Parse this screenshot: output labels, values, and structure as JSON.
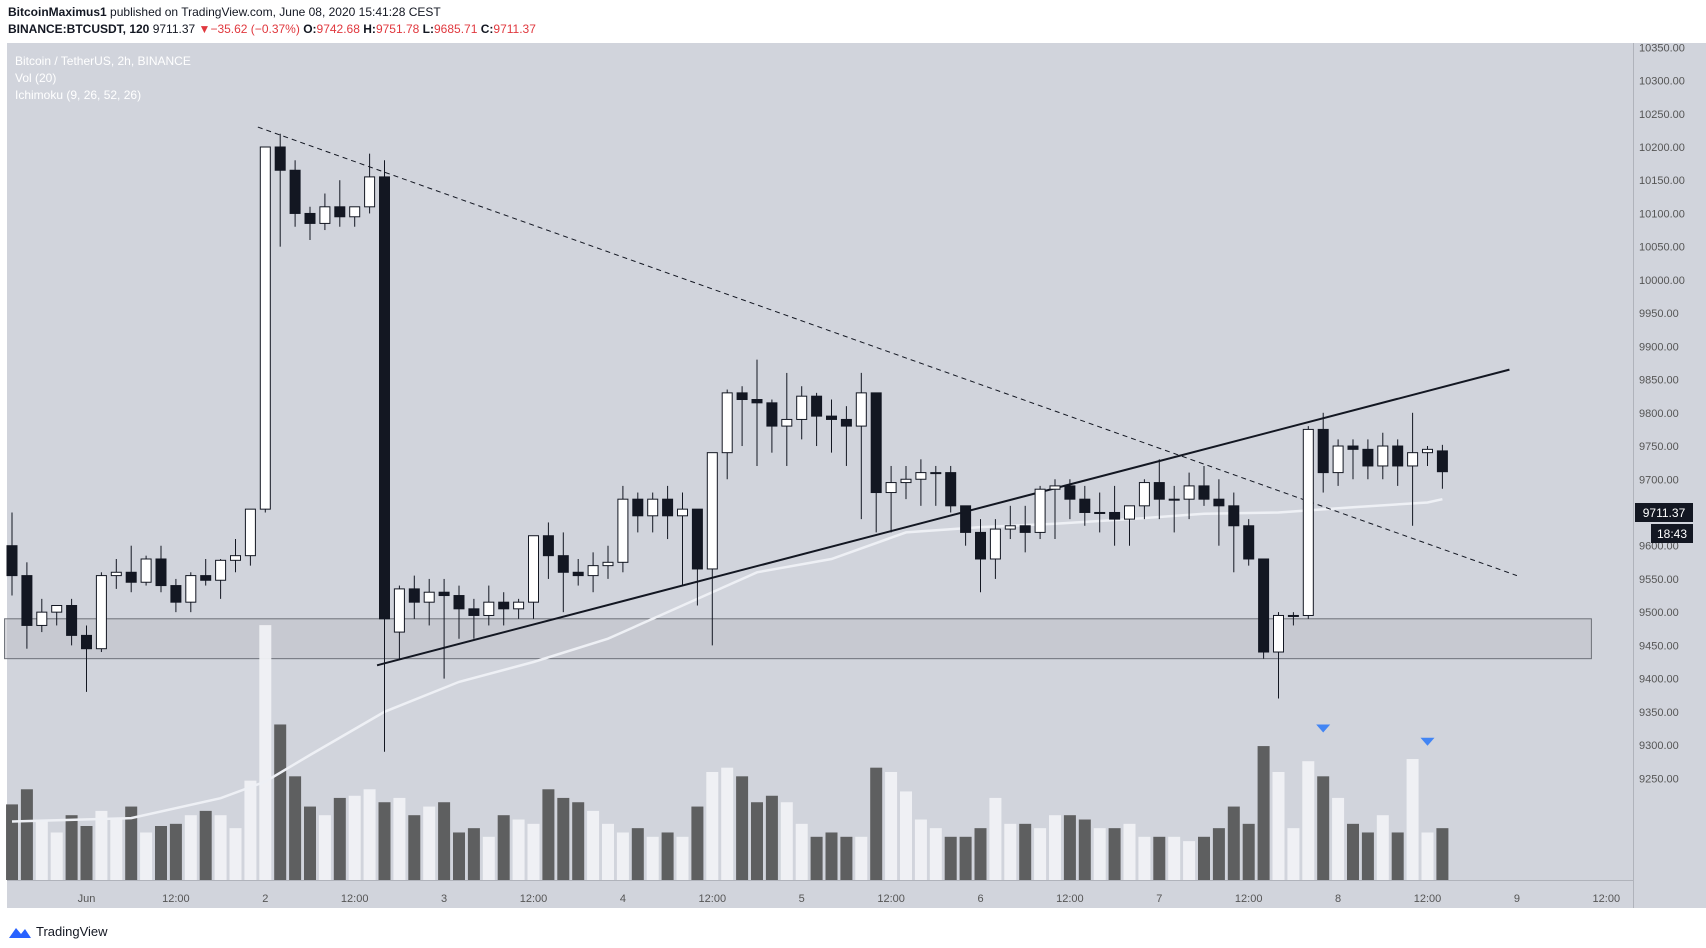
{
  "header": {
    "author": "BitcoinMaximus1",
    "published_text": "published on TradingView.com, June 08, 2020 15:41:28 CEST",
    "symbol": "BINANCE:BTCUSDT, 120",
    "last": "9711.37",
    "change_arrow": "▼",
    "change": "−35.62 (−0.37%)",
    "o_label": "O:",
    "o_value": "9742.68",
    "h_label": "H:",
    "h_value": "9751.78",
    "l_label": "L:",
    "l_value": "9685.71",
    "c_label": "C:",
    "c_value": "9711.37"
  },
  "legend": {
    "title": "Bitcoin / TetherUS, 2h, BINANCE",
    "vol": "Vol (20)",
    "ichimoku": "Ichimoku (9, 26, 52, 26)"
  },
  "price_tag": {
    "value": "9711.37",
    "countdown": "18:43"
  },
  "footer": {
    "brand": "TradingView",
    "brand_icon": "tradingview-logo-icon"
  },
  "colors": {
    "pane_bg": "#d1d4dc",
    "up_body": "#ffffff",
    "down_body": "#131722",
    "axis_text": "#555555",
    "vol_up": "#f0f1f4",
    "vol_down": "#4a4a4a",
    "ichimoku_line": "#eef0f5",
    "support_zone": "#bfc2c9",
    "marker": "#4285f4"
  },
  "chart_data": {
    "type": "candlestick",
    "ylim": [
      9200,
      10360
    ],
    "yticks": [
      10350,
      10300,
      10250,
      10200,
      10150,
      10100,
      10050,
      10000,
      9950,
      9900,
      9850,
      9800,
      9750,
      9700,
      9650,
      9600,
      9550,
      9500,
      9450,
      9400,
      9350,
      9300,
      9250
    ],
    "ytick_labels": [
      "10350.00",
      "10300.00",
      "10250.00",
      "10200.00",
      "10150.00",
      "10100.00",
      "10050.00",
      "10000.00",
      "9950.00",
      "9900.00",
      "9850.00",
      "9800.00",
      "9750.00",
      "9700.00",
      "9650.00",
      "9600.00",
      "9550.00",
      "9500.00",
      "9450.00",
      "9400.00",
      "9350.00",
      "9300.00",
      "9250.00"
    ],
    "xticks": [
      {
        "label": "Jun",
        "bar": 5
      },
      {
        "label": "12:00",
        "bar": 11
      },
      {
        "label": "2",
        "bar": 17
      },
      {
        "label": "12:00",
        "bar": 23
      },
      {
        "label": "3",
        "bar": 29
      },
      {
        "label": "12:00",
        "bar": 35
      },
      {
        "label": "4",
        "bar": 41
      },
      {
        "label": "12:00",
        "bar": 47
      },
      {
        "label": "5",
        "bar": 53
      },
      {
        "label": "12:00",
        "bar": 59
      },
      {
        "label": "6",
        "bar": 65
      },
      {
        "label": "12:00",
        "bar": 71
      },
      {
        "label": "7",
        "bar": 77
      },
      {
        "label": "12:00",
        "bar": 83
      },
      {
        "label": "8",
        "bar": 89
      },
      {
        "label": "12:00",
        "bar": 95
      },
      {
        "label": "9",
        "bar": 101
      },
      {
        "label": "12:00",
        "bar": 107
      }
    ],
    "candles_ohlc": [
      [
        9600,
        9650,
        9525,
        9555
      ],
      [
        9555,
        9575,
        9445,
        9480
      ],
      [
        9480,
        9520,
        9470,
        9500
      ],
      [
        9500,
        9510,
        9480,
        9510
      ],
      [
        9510,
        9520,
        9450,
        9465
      ],
      [
        9465,
        9480,
        9380,
        9445
      ],
      [
        9445,
        9560,
        9440,
        9555
      ],
      [
        9555,
        9580,
        9535,
        9560
      ],
      [
        9560,
        9600,
        9530,
        9545
      ],
      [
        9545,
        9585,
        9540,
        9580
      ],
      [
        9580,
        9600,
        9530,
        9540
      ],
      [
        9540,
        9550,
        9500,
        9515
      ],
      [
        9515,
        9560,
        9500,
        9555
      ],
      [
        9555,
        9580,
        9540,
        9548
      ],
      [
        9548,
        9580,
        9520,
        9578
      ],
      [
        9578,
        9610,
        9560,
        9585
      ],
      [
        9585,
        9640,
        9570,
        9655
      ],
      [
        9655,
        10200,
        9650,
        10200
      ],
      [
        10200,
        10220,
        10050,
        10165
      ],
      [
        10165,
        10180,
        10080,
        10100
      ],
      [
        10100,
        10110,
        10060,
        10085
      ],
      [
        10085,
        10130,
        10075,
        10110
      ],
      [
        10110,
        10150,
        10080,
        10095
      ],
      [
        10095,
        10110,
        10080,
        10110
      ],
      [
        10110,
        10190,
        10100,
        10155
      ],
      [
        10155,
        10180,
        9290,
        9490
      ],
      [
        9470,
        9540,
        9430,
        9535
      ],
      [
        9535,
        9555,
        9490,
        9515
      ],
      [
        9515,
        9550,
        9480,
        9530
      ],
      [
        9530,
        9550,
        9400,
        9525
      ],
      [
        9525,
        9540,
        9460,
        9505
      ],
      [
        9505,
        9520,
        9460,
        9495
      ],
      [
        9495,
        9540,
        9480,
        9515
      ],
      [
        9515,
        9530,
        9480,
        9505
      ],
      [
        9505,
        9520,
        9490,
        9515
      ],
      [
        9515,
        9535,
        9490,
        9615
      ],
      [
        9615,
        9635,
        9550,
        9585
      ],
      [
        9585,
        9620,
        9500,
        9560
      ],
      [
        9560,
        9580,
        9540,
        9555
      ],
      [
        9555,
        9590,
        9530,
        9570
      ],
      [
        9570,
        9600,
        9550,
        9575
      ],
      [
        9575,
        9690,
        9560,
        9670
      ],
      [
        9670,
        9680,
        9620,
        9645
      ],
      [
        9645,
        9680,
        9620,
        9670
      ],
      [
        9670,
        9690,
        9610,
        9645
      ],
      [
        9645,
        9680,
        9540,
        9655
      ],
      [
        9655,
        9655,
        9510,
        9565
      ],
      [
        9565,
        9740,
        9450,
        9740
      ],
      [
        9740,
        9835,
        9700,
        9830
      ],
      [
        9830,
        9840,
        9750,
        9820
      ],
      [
        9820,
        9880,
        9720,
        9815
      ],
      [
        9815,
        9820,
        9740,
        9780
      ],
      [
        9780,
        9860,
        9720,
        9790
      ],
      [
        9790,
        9840,
        9760,
        9825
      ],
      [
        9825,
        9830,
        9750,
        9795
      ],
      [
        9795,
        9820,
        9740,
        9790
      ],
      [
        9790,
        9810,
        9720,
        9780
      ],
      [
        9780,
        9860,
        9640,
        9830
      ],
      [
        9830,
        9830,
        9620,
        9680
      ],
      [
        9680,
        9720,
        9620,
        9695
      ],
      [
        9695,
        9720,
        9670,
        9700
      ],
      [
        9700,
        9730,
        9660,
        9710
      ],
      [
        9710,
        9720,
        9660,
        9710
      ],
      [
        9710,
        9720,
        9650,
        9660
      ],
      [
        9660,
        9660,
        9600,
        9620
      ],
      [
        9620,
        9640,
        9530,
        9580
      ],
      [
        9580,
        9640,
        9550,
        9625
      ],
      [
        9625,
        9660,
        9610,
        9630
      ],
      [
        9630,
        9660,
        9590,
        9620
      ],
      [
        9620,
        9690,
        9610,
        9685
      ],
      [
        9685,
        9700,
        9610,
        9690
      ],
      [
        9690,
        9700,
        9640,
        9670
      ],
      [
        9670,
        9690,
        9630,
        9650
      ],
      [
        9650,
        9680,
        9620,
        9650
      ],
      [
        9650,
        9690,
        9600,
        9640
      ],
      [
        9640,
        9660,
        9600,
        9660
      ],
      [
        9660,
        9700,
        9640,
        9695
      ],
      [
        9695,
        9730,
        9640,
        9670
      ],
      [
        9670,
        9690,
        9620,
        9670
      ],
      [
        9670,
        9710,
        9640,
        9690
      ],
      [
        9690,
        9720,
        9660,
        9670
      ],
      [
        9670,
        9700,
        9600,
        9660
      ],
      [
        9660,
        9680,
        9560,
        9630
      ],
      [
        9630,
        9640,
        9570,
        9580
      ],
      [
        9580,
        9580,
        9430,
        9440
      ],
      [
        9440,
        9500,
        9370,
        9495
      ],
      [
        9495,
        9500,
        9480,
        9495
      ],
      [
        9495,
        9780,
        9490,
        9775
      ],
      [
        9775,
        9800,
        9680,
        9710
      ],
      [
        9710,
        9760,
        9690,
        9750
      ],
      [
        9750,
        9760,
        9700,
        9745
      ],
      [
        9745,
        9760,
        9700,
        9720
      ],
      [
        9720,
        9770,
        9700,
        9750
      ],
      [
        9750,
        9760,
        9690,
        9720
      ],
      [
        9720,
        9800,
        9630,
        9740
      ],
      [
        9740,
        9750,
        9720,
        9745
      ],
      [
        9742.68,
        9751.78,
        9685.71,
        9711.37
      ]
    ],
    "volume_levels": [
      0.35,
      0.42,
      0.28,
      0.22,
      0.3,
      0.25,
      0.32,
      0.28,
      0.34,
      0.22,
      0.25,
      0.26,
      0.3,
      0.32,
      0.3,
      0.24,
      0.46,
      1.18,
      0.72,
      0.48,
      0.34,
      0.3,
      0.38,
      0.39,
      0.42,
      0.36,
      0.38,
      0.3,
      0.34,
      0.36,
      0.22,
      0.24,
      0.2,
      0.3,
      0.28,
      0.26,
      0.42,
      0.38,
      0.36,
      0.32,
      0.26,
      0.22,
      0.24,
      0.2,
      0.22,
      0.2,
      0.34,
      0.5,
      0.52,
      0.48,
      0.36,
      0.39,
      0.36,
      0.26,
      0.2,
      0.22,
      0.2,
      0.2,
      0.52,
      0.5,
      0.41,
      0.28,
      0.24,
      0.2,
      0.2,
      0.24,
      0.38,
      0.26,
      0.26,
      0.24,
      0.3,
      0.3,
      0.28,
      0.24,
      0.24,
      0.26,
      0.2,
      0.2,
      0.2,
      0.18,
      0.2,
      0.24,
      0.34,
      0.26,
      0.62,
      0.5,
      0.24,
      0.55,
      0.48,
      0.38,
      0.26,
      0.22,
      0.3,
      0.22,
      0.56,
      0.22,
      0.24
    ],
    "ichimoku_line": [
      {
        "bar": 0,
        "price": 9185
      },
      {
        "bar": 8,
        "price": 9190
      },
      {
        "bar": 14,
        "price": 9220
      },
      {
        "bar": 17,
        "price": 9245
      },
      {
        "bar": 20,
        "price": 9285
      },
      {
        "bar": 25,
        "price": 9350
      },
      {
        "bar": 30,
        "price": 9395
      },
      {
        "bar": 35,
        "price": 9425
      },
      {
        "bar": 40,
        "price": 9460
      },
      {
        "bar": 45,
        "price": 9510
      },
      {
        "bar": 50,
        "price": 9560
      },
      {
        "bar": 55,
        "price": 9580
      },
      {
        "bar": 60,
        "price": 9620
      },
      {
        "bar": 65,
        "price": 9628
      },
      {
        "bar": 70,
        "price": 9633
      },
      {
        "bar": 75,
        "price": 9640
      },
      {
        "bar": 80,
        "price": 9648
      },
      {
        "bar": 85,
        "price": 9650
      },
      {
        "bar": 90,
        "price": 9658
      },
      {
        "bar": 95,
        "price": 9665
      },
      {
        "bar": 96,
        "price": 9670
      }
    ],
    "downtrend_line": {
      "from": {
        "bar": 16.5,
        "price": 10230
      },
      "to": {
        "bar": 101,
        "price": 9555
      }
    },
    "uptrend_line": {
      "from": {
        "bar": 24.5,
        "price": 9420
      },
      "to": {
        "bar": 100.5,
        "price": 9865
      }
    },
    "support_zone": {
      "from_bar": -0.5,
      "to_bar": 106,
      "low": 9430,
      "high": 9490
    },
    "markers": [
      {
        "bar": 88,
        "price": 9325
      },
      {
        "bar": 95,
        "price": 9305
      }
    ],
    "grid": false,
    "legend_position": "top-left"
  }
}
